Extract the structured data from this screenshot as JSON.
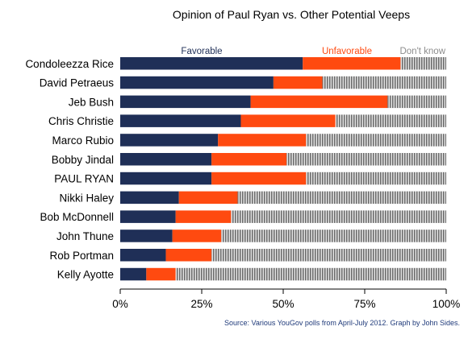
{
  "chart_data": {
    "type": "bar",
    "orientation": "horizontal",
    "stacked": true,
    "title": "Opinion of Paul Ryan vs. Other Potential Veeps",
    "categories": [
      "Condoleezza Rice",
      "David Petraeus",
      "Jeb Bush",
      "Chris Christie",
      "Marco Rubio",
      "Bobby Jindal",
      "PAUL RYAN",
      "Nikki Haley",
      "Bob McDonnell",
      "John Thune",
      "Rob Portman",
      "Kelly Ayotte"
    ],
    "highlight_category": "PAUL RYAN",
    "series": [
      {
        "name": "Favorable",
        "color": "#1f2f57",
        "values": [
          56,
          47,
          40,
          37,
          30,
          28,
          28,
          18,
          17,
          16,
          14,
          8
        ]
      },
      {
        "name": "Unfavorable",
        "color": "#ff4a10",
        "values": [
          30,
          15,
          42,
          29,
          27,
          23,
          29,
          18,
          17,
          15,
          14,
          9
        ]
      },
      {
        "name": "Don't know",
        "color": "#9a9a9a",
        "values": [
          14,
          38,
          18,
          34,
          43,
          49,
          43,
          64,
          66,
          69,
          72,
          83
        ]
      }
    ],
    "xlim": [
      0,
      100
    ],
    "x_ticks": [
      "0%",
      "25%",
      "50%",
      "75%",
      "100%"
    ],
    "legend_position": "top",
    "source": "Source: Various YouGov polls from April-July 2012.  Graph by John Sides."
  }
}
